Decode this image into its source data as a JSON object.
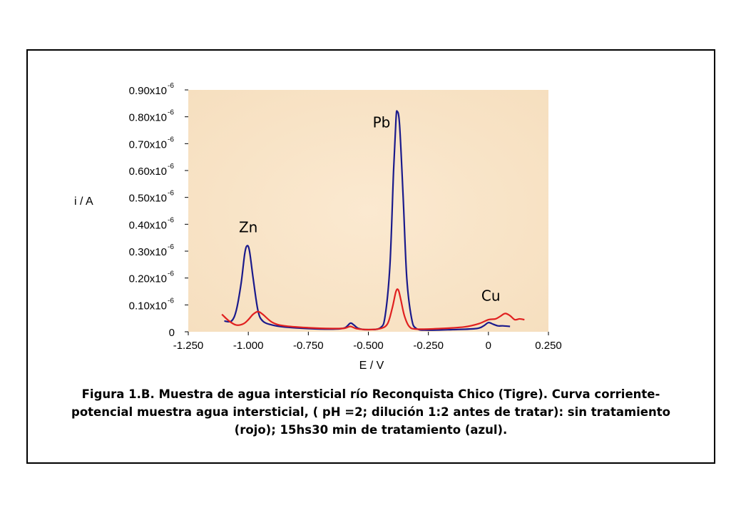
{
  "chart_data": {
    "type": "line",
    "xlabel": "E / V",
    "ylabel": "i / A",
    "xlim": [
      -1.25,
      0.25
    ],
    "ylim": [
      0,
      0.9
    ],
    "x_ticks": [
      "-1.250",
      "-1.000",
      "-0.750",
      "-0.500",
      "-0.250",
      "0",
      "0.250"
    ],
    "x_tick_values": [
      -1.25,
      -1.0,
      -0.75,
      -0.5,
      -0.25,
      0,
      0.25
    ],
    "y_ticks": [
      {
        "value": 0,
        "base": "0",
        "exp": ""
      },
      {
        "value": 0.1,
        "base": "0.10x10",
        "exp": "-6"
      },
      {
        "value": 0.2,
        "base": "0.20x10",
        "exp": "-6"
      },
      {
        "value": 0.3,
        "base": "0.30x10",
        "exp": "-6"
      },
      {
        "value": 0.4,
        "base": "0.40x10",
        "exp": "-6"
      },
      {
        "value": 0.5,
        "base": "0.50x10",
        "exp": "-6"
      },
      {
        "value": 0.6,
        "base": "0.60x10",
        "exp": "-6"
      },
      {
        "value": 0.7,
        "base": "0.70x10",
        "exp": "-6"
      },
      {
        "value": 0.8,
        "base": "0.80x10",
        "exp": "-6"
      },
      {
        "value": 0.9,
        "base": "0.90x10",
        "exp": "-6"
      }
    ],
    "series": [
      {
        "color": "#1a1a8c",
        "points": [
          [
            -1.1,
            0.04
          ],
          [
            -1.07,
            0.04
          ],
          [
            -1.05,
            0.08
          ],
          [
            -1.03,
            0.18
          ],
          [
            -1.015,
            0.29
          ],
          [
            -1.005,
            0.32
          ],
          [
            -0.995,
            0.3
          ],
          [
            -0.98,
            0.2
          ],
          [
            -0.96,
            0.08
          ],
          [
            -0.94,
            0.04
          ],
          [
            -0.9,
            0.025
          ],
          [
            -0.85,
            0.018
          ],
          [
            -0.75,
            0.012
          ],
          [
            -0.65,
            0.01
          ],
          [
            -0.6,
            0.014
          ],
          [
            -0.575,
            0.032
          ],
          [
            -0.56,
            0.025
          ],
          [
            -0.54,
            0.012
          ],
          [
            -0.5,
            0.008
          ],
          [
            -0.45,
            0.015
          ],
          [
            -0.43,
            0.06
          ],
          [
            -0.41,
            0.25
          ],
          [
            -0.395,
            0.6
          ],
          [
            -0.385,
            0.79
          ],
          [
            -0.38,
            0.82
          ],
          [
            -0.37,
            0.77
          ],
          [
            -0.355,
            0.5
          ],
          [
            -0.34,
            0.2
          ],
          [
            -0.32,
            0.05
          ],
          [
            -0.3,
            0.012
          ],
          [
            -0.25,
            0.006
          ],
          [
            -0.15,
            0.008
          ],
          [
            -0.05,
            0.012
          ],
          [
            -0.02,
            0.022
          ],
          [
            0.0,
            0.034
          ],
          [
            0.02,
            0.028
          ],
          [
            0.04,
            0.022
          ],
          [
            0.06,
            0.022
          ],
          [
            0.09,
            0.02
          ]
        ]
      },
      {
        "color": "#e02020",
        "points": [
          [
            -1.11,
            0.065
          ],
          [
            -1.08,
            0.04
          ],
          [
            -1.05,
            0.025
          ],
          [
            -1.02,
            0.03
          ],
          [
            -1.0,
            0.045
          ],
          [
            -0.98,
            0.065
          ],
          [
            -0.96,
            0.075
          ],
          [
            -0.94,
            0.065
          ],
          [
            -0.9,
            0.035
          ],
          [
            -0.85,
            0.022
          ],
          [
            -0.75,
            0.015
          ],
          [
            -0.65,
            0.012
          ],
          [
            -0.6,
            0.013
          ],
          [
            -0.575,
            0.02
          ],
          [
            -0.55,
            0.012
          ],
          [
            -0.5,
            0.008
          ],
          [
            -0.45,
            0.012
          ],
          [
            -0.42,
            0.03
          ],
          [
            -0.4,
            0.09
          ],
          [
            -0.385,
            0.15
          ],
          [
            -0.375,
            0.155
          ],
          [
            -0.365,
            0.12
          ],
          [
            -0.35,
            0.06
          ],
          [
            -0.33,
            0.02
          ],
          [
            -0.3,
            0.01
          ],
          [
            -0.2,
            0.012
          ],
          [
            -0.1,
            0.018
          ],
          [
            -0.04,
            0.03
          ],
          [
            0.0,
            0.045
          ],
          [
            0.03,
            0.048
          ],
          [
            0.05,
            0.058
          ],
          [
            0.07,
            0.068
          ],
          [
            0.09,
            0.06
          ],
          [
            0.11,
            0.045
          ],
          [
            0.13,
            0.048
          ],
          [
            0.15,
            0.045
          ]
        ]
      }
    ],
    "annotations": [
      {
        "text": "Zn",
        "x": -1.0,
        "y": 0.37
      },
      {
        "text": "Pb",
        "x": -0.445,
        "y": 0.76
      },
      {
        "text": "Cu",
        "x": 0.01,
        "y": 0.115
      }
    ]
  },
  "caption": {
    "line1": "Figura 1.B. Muestra de agua intersticial río Reconquista Chico (Tigre). Curva corriente-",
    "line2": "potencial muestra agua intersticial, ( pH =2; dilución 1:2 antes de tratar): sin tratamiento",
    "line3": "(rojo); 15hs30 min de tratamiento (azul)."
  }
}
